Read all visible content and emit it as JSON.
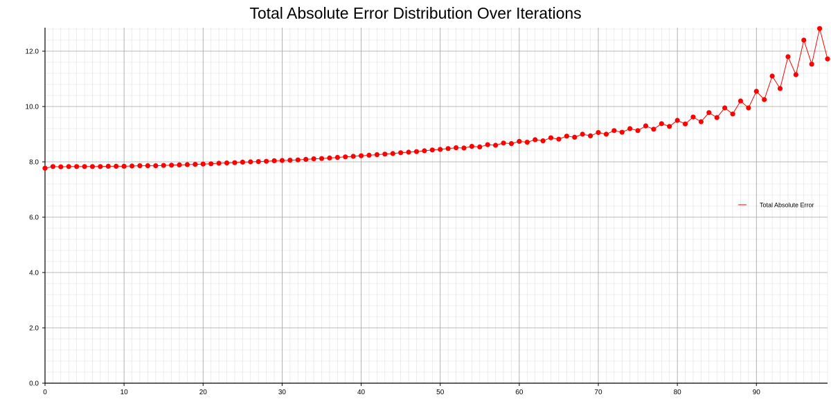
{
  "chart_data": {
    "type": "line",
    "title": "Total Absolute Error Distribution Over Iterations",
    "xlabel": "",
    "ylabel": "",
    "xlim": [
      0,
      99
    ],
    "ylim": [
      0,
      12.85
    ],
    "x_ticks": [
      0,
      10,
      20,
      30,
      40,
      50,
      60,
      70,
      80,
      90
    ],
    "y_ticks": [
      0.0,
      2.0,
      4.0,
      6.0,
      8.0,
      10.0,
      12.0
    ],
    "y_tick_labels": [
      "0.0",
      "2.0",
      "4.0",
      "6.0",
      "8.0",
      "10.0",
      "12.0"
    ],
    "x_tick_labels": [
      "0",
      "10",
      "20",
      "30",
      "40",
      "50",
      "60",
      "70",
      "80",
      "90"
    ],
    "grid": true,
    "minor_grid": true,
    "legend_position": "right",
    "colors": {
      "series": "#ff0000",
      "major_grid": "#a0a0a0",
      "minor_grid": "#e0e0e0",
      "axis": "#000000"
    },
    "x": [
      0,
      1,
      2,
      3,
      4,
      5,
      6,
      7,
      8,
      9,
      10,
      11,
      12,
      13,
      14,
      15,
      16,
      17,
      18,
      19,
      20,
      21,
      22,
      23,
      24,
      25,
      26,
      27,
      28,
      29,
      30,
      31,
      32,
      33,
      34,
      35,
      36,
      37,
      38,
      39,
      40,
      41,
      42,
      43,
      44,
      45,
      46,
      47,
      48,
      49,
      50,
      51,
      52,
      53,
      54,
      55,
      56,
      57,
      58,
      59,
      60,
      61,
      62,
      63,
      64,
      65,
      66,
      67,
      68,
      69,
      70,
      71,
      72,
      73,
      74,
      75,
      76,
      77,
      78,
      79,
      80,
      81,
      82,
      83,
      84,
      85,
      86,
      87,
      88,
      89,
      90,
      91,
      92,
      93,
      94,
      95,
      96,
      97,
      98,
      99
    ],
    "series": [
      {
        "name": "Total Absolute Error",
        "values": [
          7.77,
          7.83,
          7.82,
          7.83,
          7.83,
          7.83,
          7.83,
          7.83,
          7.84,
          7.84,
          7.84,
          7.85,
          7.86,
          7.86,
          7.86,
          7.87,
          7.88,
          7.89,
          7.9,
          7.91,
          7.92,
          7.93,
          7.95,
          7.96,
          7.97,
          7.99,
          8.0,
          8.01,
          8.02,
          8.04,
          8.05,
          8.06,
          8.07,
          8.09,
          8.11,
          8.12,
          8.14,
          8.16,
          8.18,
          8.2,
          8.22,
          8.24,
          8.26,
          8.28,
          8.3,
          8.33,
          8.35,
          8.37,
          8.4,
          8.43,
          8.45,
          8.48,
          8.51,
          8.5,
          8.56,
          8.54,
          8.62,
          8.6,
          8.68,
          8.66,
          8.74,
          8.71,
          8.8,
          8.76,
          8.87,
          8.82,
          8.93,
          8.89,
          9.0,
          8.94,
          9.06,
          9.0,
          9.13,
          9.07,
          9.2,
          9.13,
          9.3,
          9.18,
          9.38,
          9.28,
          9.5,
          9.37,
          9.62,
          9.45,
          9.78,
          9.6,
          9.95,
          9.73,
          10.2,
          9.95,
          10.55,
          10.25,
          11.1,
          10.65,
          11.8,
          11.15,
          12.4,
          11.53,
          12.82,
          11.72
        ]
      }
    ]
  }
}
